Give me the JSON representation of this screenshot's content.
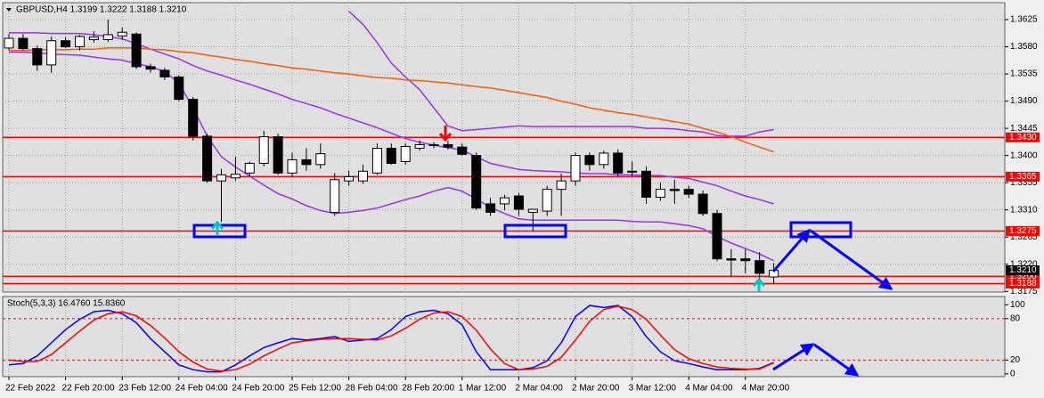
{
  "chart_data": [
    {
      "type": "candlestick",
      "title": "GBPUSD,H4  1.3199 1.3222 1.3188 1.3210",
      "categories": [
        "22 Feb 2022",
        null,
        null,
        null,
        "22 Feb 20:00",
        null,
        null,
        null,
        "23 Feb 12:00",
        null,
        null,
        null,
        "24 Feb 04:00",
        null,
        null,
        null,
        "24 Feb 20:00",
        null,
        null,
        null,
        "25 Feb 12:00",
        null,
        null,
        null,
        "28 Feb 04:00",
        null,
        null,
        null,
        "28 Feb 20:00",
        null,
        null,
        null,
        "1 Mar 12:00",
        null,
        null,
        null,
        "2 Mar 04:00",
        null,
        null,
        null,
        "2 Mar 20:00",
        null,
        null,
        null,
        "3 Mar 12:00",
        null,
        null,
        null,
        "4 Mar 04:00",
        null,
        null,
        null,
        "4 Mar 20:00",
        null,
        null
      ],
      "open": [
        1.3578,
        1.3594,
        1.3577,
        1.355,
        1.359,
        1.358,
        1.3592,
        1.3592,
        1.3598,
        1.3601,
        1.3547,
        1.3541,
        1.353,
        1.3493,
        1.3432,
        1.3358,
        1.3363,
        1.3371,
        1.3387,
        1.3431,
        1.3371,
        1.3393,
        1.3385,
        1.3306,
        1.3358,
        1.3358,
        1.3371,
        1.3412,
        1.339,
        1.3412,
        1.3417,
        1.3418,
        1.3414,
        1.34,
        1.332,
        1.332,
        1.3333,
        1.3306,
        1.3308,
        1.3344,
        1.3358,
        1.34,
        1.3385,
        1.3404,
        1.3374,
        1.3374,
        1.3331,
        1.3344,
        1.3344,
        1.3336,
        1.3304,
        1.3229,
        1.3229,
        1.3226,
        1.3199
      ],
      "high": [
        1.3601,
        1.3601,
        1.3582,
        1.3597,
        1.3596,
        1.36,
        1.3606,
        1.3625,
        1.3612,
        1.3604,
        1.3552,
        1.3545,
        1.3533,
        1.3497,
        1.3436,
        1.3378,
        1.3398,
        1.339,
        1.3441,
        1.3436,
        1.3405,
        1.3412,
        1.342,
        1.3371,
        1.3375,
        1.3385,
        1.342,
        1.342,
        1.342,
        1.3425,
        1.3422,
        1.3425,
        1.342,
        1.3405,
        1.333,
        1.3335,
        1.3338,
        1.3311,
        1.335,
        1.337,
        1.3405,
        1.3405,
        1.3408,
        1.341,
        1.339,
        1.3382,
        1.3355,
        1.336,
        1.335,
        1.3342,
        1.331,
        1.3245,
        1.3245,
        1.324,
        1.3222
      ],
      "low": [
        1.3574,
        1.3574,
        1.354,
        1.3537,
        1.3578,
        1.3574,
        1.3587,
        1.3588,
        1.3592,
        1.3543,
        1.3537,
        1.3525,
        1.349,
        1.3425,
        1.3355,
        1.329,
        1.3358,
        1.3365,
        1.3382,
        1.3368,
        1.3365,
        1.3375,
        1.3378,
        1.33,
        1.335,
        1.3353,
        1.3368,
        1.3385,
        1.3385,
        1.3408,
        1.3412,
        1.341,
        1.34,
        1.331,
        1.33,
        1.331,
        1.33,
        1.3275,
        1.33,
        1.33,
        1.335,
        1.3375,
        1.3378,
        1.3365,
        1.3365,
        1.332,
        1.3325,
        1.332,
        1.333,
        1.33,
        1.3225,
        1.32,
        1.3205,
        1.3192,
        1.3188
      ],
      "close": [
        1.3594,
        1.3577,
        1.355,
        1.359,
        1.358,
        1.3597,
        1.3596,
        1.36,
        1.3604,
        1.3547,
        1.3543,
        1.353,
        1.3493,
        1.3432,
        1.3358,
        1.3368,
        1.3369,
        1.3387,
        1.3431,
        1.3371,
        1.3393,
        1.3385,
        1.3403,
        1.336,
        1.3365,
        1.3374,
        1.3412,
        1.3387,
        1.3415,
        1.3418,
        1.3418,
        1.3414,
        1.3402,
        1.3313,
        1.3306,
        1.333,
        1.3311,
        1.3311,
        1.3344,
        1.3358,
        1.34,
        1.3385,
        1.3404,
        1.3371,
        1.3373,
        1.3331,
        1.3344,
        1.3342,
        1.3336,
        1.3304,
        1.3229,
        1.3227,
        1.3226,
        1.3205,
        1.321
      ],
      "up_color": "#ffffff",
      "down_color": "#000000",
      "series": [
        {
          "color": "#9933ee",
          "values": [
            null,
            null,
            null,
            null,
            null,
            null,
            null,
            null,
            null,
            null,
            null,
            null,
            null,
            null,
            null,
            null,
            null,
            null,
            null,
            null,
            null,
            null,
            null,
            null,
            1.3639,
            1.3617,
            1.3587,
            1.3553,
            1.353,
            1.3509,
            1.3479,
            1.3449,
            1.3441,
            1.3443,
            1.3445,
            1.3447,
            1.3449,
            1.3448,
            1.3448,
            1.3448,
            1.3448,
            1.3448,
            1.3448,
            1.3448,
            1.3448,
            1.3445,
            1.3445,
            1.3444,
            1.3441,
            1.3439,
            1.3433,
            1.3432,
            1.3432,
            1.3439,
            1.3443
          ]
        },
        {
          "color": "#9933ee",
          "values": [
            1.3603,
            1.3603,
            1.3603,
            1.3602,
            1.3602,
            1.3602,
            1.36,
            1.3597,
            1.3593,
            1.3585,
            1.3576,
            1.3568,
            1.356,
            1.3549,
            1.354,
            1.3533,
            1.3525,
            1.3518,
            1.351,
            1.3502,
            1.3493,
            1.3486,
            1.3479,
            1.347,
            1.3462,
            1.3454,
            1.3446,
            1.3437,
            1.3428,
            1.3422,
            1.3417,
            1.3413,
            1.3409,
            1.3398,
            1.3387,
            1.3382,
            1.3377,
            1.3375,
            1.3374,
            1.3373,
            1.3371,
            1.337,
            1.337,
            1.3368,
            1.3368,
            1.3367,
            1.3367,
            1.3364,
            1.3362,
            1.3356,
            1.335,
            1.3341,
            1.3333,
            1.3327,
            1.332
          ]
        },
        {
          "color": "#9933ee",
          "values": [
            1.3571,
            1.3571,
            1.357,
            1.3568,
            1.3567,
            1.3566,
            1.3563,
            1.356,
            1.3558,
            1.3552,
            1.3547,
            1.3539,
            1.352,
            1.3479,
            1.3432,
            1.3398,
            1.3381,
            1.3366,
            1.3351,
            1.3337,
            1.3328,
            1.3317,
            1.3309,
            1.3304,
            1.3306,
            1.3309,
            1.3313,
            1.332,
            1.3327,
            1.3333,
            1.3341,
            1.3347,
            1.3341,
            1.3328,
            1.3314,
            1.3304,
            1.3295,
            1.3293,
            1.3293,
            1.3293,
            1.3293,
            1.3293,
            1.3293,
            1.3293,
            1.3291,
            1.329,
            1.329,
            1.3287,
            1.3284,
            1.3279,
            1.3266,
            1.3255,
            1.3246,
            1.3237,
            1.3226
          ]
        },
        {
          "color": "#ff5a0a",
          "values": [
            1.3574,
            1.3574,
            1.3575,
            1.3575,
            1.3575,
            1.3576,
            1.3576,
            1.3578,
            1.3578,
            1.3578,
            1.3576,
            1.3575,
            1.3572,
            1.357,
            1.3566,
            1.3563,
            1.3559,
            1.3556,
            1.3552,
            1.3549,
            1.3545,
            1.3543,
            1.354,
            1.3537,
            1.3535,
            1.3532,
            1.3529,
            1.3528,
            1.3525,
            1.3524,
            1.3522,
            1.352,
            1.3517,
            1.3514,
            1.3512,
            1.3508,
            1.3504,
            1.35,
            1.3496,
            1.349,
            1.3485,
            1.3479,
            1.3475,
            1.3471,
            1.3468,
            1.3464,
            1.346,
            1.3456,
            1.3452,
            1.3445,
            1.3439,
            1.3431,
            1.3422,
            1.3414,
            1.3406
          ]
        }
      ],
      "ylim": [
        1.3174,
        1.3653
      ],
      "yticks": [
        1.3625,
        {
          "value": 1.358,
          "label": "1.3580"
        },
        1.3535,
        {
          "value": 1.349,
          "label": "1.3490"
        },
        1.3445,
        {
          "value": 1.34,
          "label": "1.3400"
        },
        1.3355,
        {
          "value": 1.331,
          "label": "1.3310"
        },
        1.3265,
        {
          "value": 1.322,
          "label": "1.3220"
        },
        1.3175
      ],
      "grid": true,
      "levels": [
        {
          "value": 1.343,
          "label": "1.3430"
        },
        {
          "value": 1.3365,
          "label": "1.3365"
        },
        {
          "value": 1.3275,
          "label": "1.3275"
        },
        {
          "value": 1.32,
          "label": "1.3200"
        },
        {
          "value": 1.3188,
          "label": "1.3188"
        }
      ],
      "level_color": "#ff0000",
      "current_price": {
        "value": 1.321,
        "label": "1.3210"
      }
    },
    {
      "type": "line",
      "title": "Stoch(5,3,3) 16.4760 15.8360",
      "series": [
        {
          "color": "#0000ff",
          "values": [
            13,
            15,
            26,
            45,
            64,
            79,
            90,
            92,
            87,
            74,
            51,
            32,
            13,
            6,
            3,
            3,
            13,
            26,
            38,
            45,
            51,
            49,
            51,
            54,
            47,
            49,
            51,
            64,
            83,
            90,
            92,
            87,
            71,
            32,
            6,
            6,
            6,
            9,
            19,
            45,
            83,
            99,
            96,
            99,
            83,
            54,
            32,
            19,
            15,
            10,
            6,
            6,
            6,
            8,
            16.476
          ]
        },
        {
          "color": "#ff0000",
          "values": [
            20,
            18,
            18,
            28,
            45,
            62,
            78,
            87,
            90,
            84,
            70,
            52,
            32,
            17,
            7,
            4,
            6,
            14,
            26,
            36,
            45,
            48,
            50,
            51,
            51,
            50,
            49,
            55,
            66,
            79,
            88,
            90,
            83,
            63,
            36,
            15,
            6,
            7,
            11,
            24,
            49,
            76,
            93,
            98,
            93,
            79,
            56,
            35,
            22,
            15,
            10,
            8,
            7,
            7,
            15.836
          ]
        }
      ],
      "ylim": [
        -4,
        112
      ],
      "yticks": [
        0,
        20,
        80,
        100
      ],
      "grid": false,
      "levels": [
        20,
        80
      ],
      "level_color": "#ff0000"
    }
  ]
}
